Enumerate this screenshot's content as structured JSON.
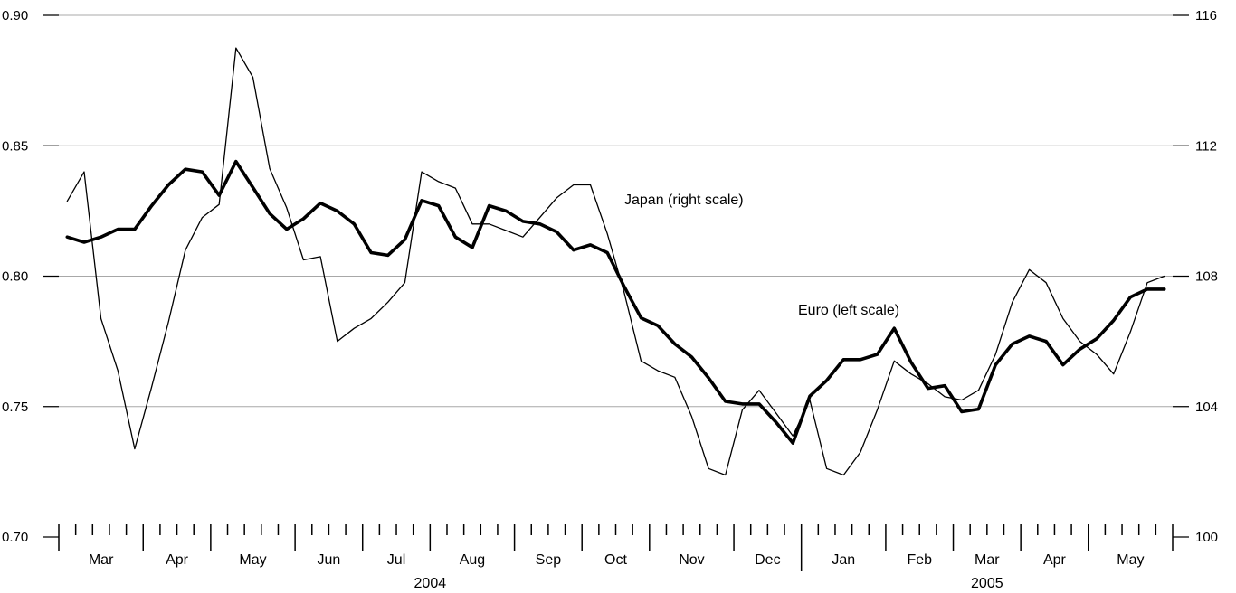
{
  "chart_data": {
    "type": "line",
    "x_unit": "week",
    "x": [
      "2004-03-01",
      "2004-03-08",
      "2004-03-15",
      "2004-03-22",
      "2004-03-29",
      "2004-04-05",
      "2004-04-12",
      "2004-04-19",
      "2004-04-26",
      "2004-05-03",
      "2004-05-10",
      "2004-05-17",
      "2004-05-24",
      "2004-05-31",
      "2004-06-07",
      "2004-06-14",
      "2004-06-21",
      "2004-06-28",
      "2004-07-05",
      "2004-07-12",
      "2004-07-19",
      "2004-07-26",
      "2004-08-02",
      "2004-08-09",
      "2004-08-16",
      "2004-08-23",
      "2004-08-30",
      "2004-09-06",
      "2004-09-13",
      "2004-09-20",
      "2004-09-27",
      "2004-10-04",
      "2004-10-11",
      "2004-10-18",
      "2004-10-25",
      "2004-11-01",
      "2004-11-08",
      "2004-11-15",
      "2004-11-22",
      "2004-11-29",
      "2004-12-06",
      "2004-12-13",
      "2004-12-20",
      "2004-12-27",
      "2005-01-03",
      "2005-01-10",
      "2005-01-17",
      "2005-01-24",
      "2005-01-31",
      "2005-02-07",
      "2005-02-14",
      "2005-02-21",
      "2005-02-28",
      "2005-03-07",
      "2005-03-14",
      "2005-03-21",
      "2005-03-28",
      "2005-04-04",
      "2005-04-11",
      "2005-04-18",
      "2005-04-25",
      "2005-05-02",
      "2005-05-09",
      "2005-05-16",
      "2005-05-23",
      "2005-05-30"
    ],
    "months": [
      "Mar",
      "Apr",
      "May",
      "Jun",
      "Jul",
      "Aug",
      "Sep",
      "Oct",
      "Nov",
      "Dec",
      "Jan",
      "Feb",
      "Mar",
      "Apr",
      "May"
    ],
    "years": [
      "2004",
      "2005"
    ],
    "left_axis": {
      "min": 0.7,
      "max": 0.9,
      "ticks": [
        "0.70",
        "0.75",
        "0.80",
        "0.85",
        "0.90"
      ]
    },
    "right_axis": {
      "min": 100,
      "max": 116,
      "ticks": [
        "100",
        "104",
        "108",
        "112",
        "116"
      ]
    },
    "grid": true,
    "series": [
      {
        "name": "Euro (left scale)",
        "axis": "left",
        "color": "#000000",
        "weight": "heavy",
        "values": [
          0.815,
          0.813,
          0.815,
          0.818,
          0.818,
          0.827,
          0.835,
          0.841,
          0.84,
          0.831,
          0.844,
          0.834,
          0.824,
          0.818,
          0.822,
          0.828,
          0.825,
          0.82,
          0.809,
          0.808,
          0.814,
          0.829,
          0.827,
          0.815,
          0.811,
          0.827,
          0.825,
          0.821,
          0.82,
          0.817,
          0.81,
          0.812,
          0.809,
          0.796,
          0.784,
          0.781,
          0.774,
          0.769,
          0.761,
          0.752,
          0.751,
          0.751,
          0.744,
          0.736,
          0.754,
          0.76,
          0.768,
          0.768,
          0.77,
          0.78,
          0.767,
          0.757,
          0.758,
          0.748,
          0.749,
          0.766,
          0.774,
          0.777,
          0.775,
          0.766,
          0.772,
          0.776,
          0.783,
          0.792,
          0.795,
          0.795
        ]
      },
      {
        "name": "Japan (right scale)",
        "axis": "right",
        "color": "#000000",
        "weight": "thin",
        "values": [
          110.3,
          111.2,
          106.7,
          105.1,
          102.7,
          104.6,
          106.6,
          108.8,
          109.8,
          110.2,
          115.0,
          114.1,
          111.3,
          110.1,
          108.5,
          108.6,
          106.0,
          106.4,
          106.7,
          107.2,
          107.8,
          111.2,
          110.9,
          110.7,
          109.6,
          109.6,
          109.4,
          109.2,
          109.8,
          110.4,
          110.8,
          110.8,
          109.3,
          107.5,
          105.4,
          105.1,
          104.9,
          103.7,
          102.1,
          101.9,
          103.9,
          104.5,
          103.8,
          103.1,
          104.2,
          102.1,
          101.9,
          102.6,
          103.9,
          105.4,
          105.0,
          104.7,
          104.3,
          104.2,
          104.5,
          105.6,
          107.2,
          108.2,
          107.8,
          106.7,
          106.0,
          105.6,
          105.0,
          106.3,
          107.8,
          108.0
        ]
      }
    ]
  }
}
